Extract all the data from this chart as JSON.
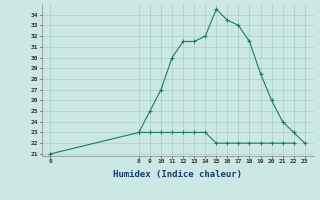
{
  "x_main": [
    0,
    8,
    9,
    10,
    11,
    12,
    13,
    14,
    15,
    16,
    17,
    18,
    19,
    20,
    21,
    22,
    23
  ],
  "y_main": [
    21,
    23,
    25,
    27,
    30,
    31.5,
    31.5,
    32,
    34.5,
    33.5,
    33,
    31.5,
    28.5,
    26,
    24,
    23,
    22
  ],
  "x_flat": [
    8,
    9,
    10,
    11,
    12,
    13,
    14,
    15,
    16,
    17,
    18,
    19,
    20,
    21,
    22
  ],
  "y_flat": [
    23,
    23,
    23,
    23,
    23,
    23,
    23,
    22,
    22,
    22,
    22,
    22,
    22,
    22,
    22
  ],
  "line_color": "#1a7a6a",
  "bg_color": "#cce8e4",
  "grid_color": "#aacfcb",
  "xlabel": "Humidex (Indice chaleur)",
  "xlabel_fontsize": 6.5,
  "yticks": [
    21,
    22,
    23,
    24,
    25,
    26,
    27,
    28,
    29,
    30,
    31,
    32,
    33,
    34
  ],
  "xticks": [
    0,
    8,
    9,
    10,
    11,
    12,
    13,
    14,
    15,
    16,
    17,
    18,
    19,
    20,
    21,
    22,
    23
  ],
  "ylim": [
    20.8,
    35.0
  ],
  "xlim": [
    -0.8,
    23.8
  ]
}
